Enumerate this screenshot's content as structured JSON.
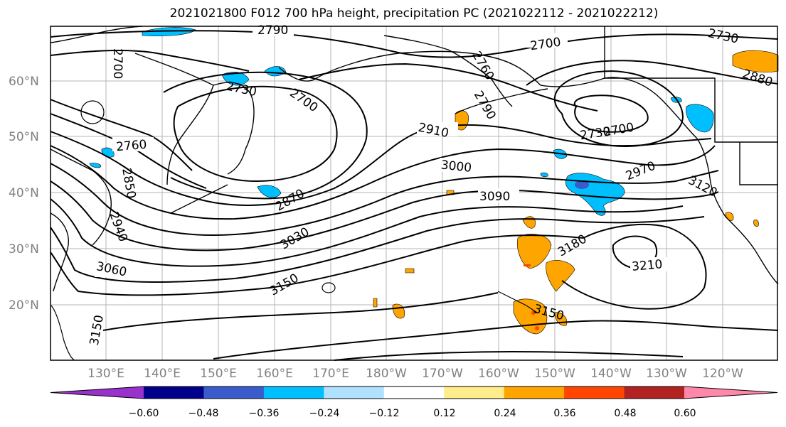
{
  "title": "2021021800 F012 700 hPa height, precipitation PC (2021022112 - 2021022212)",
  "lat_labels": [
    "60°N",
    "50°N",
    "40°N",
    "30°N",
    "20°N"
  ],
  "lon_labels": [
    "130°E",
    "140°E",
    "150°E",
    "160°E",
    "170°E",
    "180°W",
    "170°W",
    "160°W",
    "150°W",
    "140°W",
    "130°W",
    "120°W"
  ],
  "colorbar": {
    "colors": [
      "#9932cc",
      "#00008b",
      "#3a5bcc",
      "#00bfff",
      "#b0e2ff",
      "#ffffff",
      "#ffec8b",
      "#ffa500",
      "#ff4500",
      "#b22222",
      "#ff88aa"
    ],
    "tick_labels": [
      "−0.60",
      "−0.48",
      "−0.36",
      "−0.24",
      "−0.12",
      "0.12",
      "0.24",
      "0.36",
      "0.48",
      "0.60"
    ]
  },
  "contour_labels": [
    "2790",
    "2700",
    "2730",
    "2760",
    "2790",
    "2700",
    "2730",
    "2880",
    "2700",
    "2910",
    "2730",
    "2700",
    "2760",
    "2850",
    "2970",
    "3000",
    "2870",
    "3090",
    "3120",
    "2940",
    "3030",
    "3180",
    "3060",
    "3150",
    "3210",
    "3150",
    "3150"
  ],
  "colors": {
    "positive": "#ffa500",
    "positive_strong": "#ff4500",
    "negative": "#00bfff",
    "negative_strong": "#3a5bcc"
  }
}
